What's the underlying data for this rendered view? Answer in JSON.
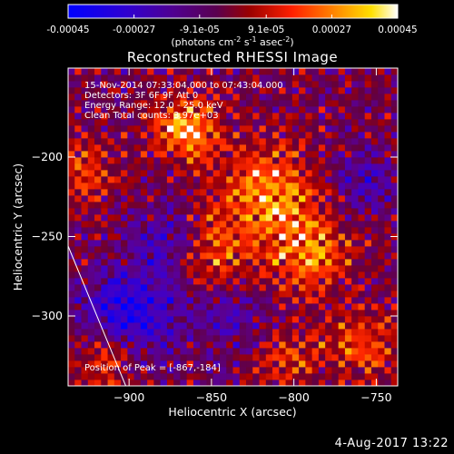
{
  "colorbar": {
    "ticks": [
      "-0.00045",
      "-0.00027",
      "-9.1e-05",
      "9.1e-05",
      "0.00027",
      "0.00045"
    ],
    "tick_values": [
      -0.00045,
      -0.00027,
      -9.1e-05,
      9.1e-05,
      0.00027,
      0.00045
    ],
    "units_text": "(photons cm",
    "units_sup1": "-2",
    "units_mid": " s",
    "units_sup2": "-1",
    "units_end": " asec",
    "units_sup3": "-2",
    "units_close": ")",
    "colormap": [
      "#0000ff",
      "#4a00a0",
      "#500078",
      "#8a0000",
      "#ff2000",
      "#ff8000",
      "#ffd000",
      "#ffffff"
    ]
  },
  "info": {
    "line1": "15-Nov-2014 07:33:04.000 to 07:43:04.000",
    "line2": "Detectors: 3F 6F 9F  Att 0",
    "line3": "Energy Range: 12.0 - 25.0 keV",
    "line4": "Clean    Total counts: 3.97e+03",
    "peak": "Position of Peak = [-867,-184]"
  },
  "footer": {
    "date": "4-Aug-2017 13:22"
  },
  "chart_data": {
    "type": "heatmap",
    "title": "Reconstructed RHESSI Image",
    "xlabel": "Heliocentric X (arcsec)",
    "ylabel": "Heliocentric Y (arcsec)",
    "xlim": [
      -937,
      -737
    ],
    "ylim": [
      -344,
      -144
    ],
    "xticks": [
      -900,
      -850,
      -800,
      -750
    ],
    "yticks": [
      -200,
      -250,
      -300
    ],
    "xtick_labels": [
      "−900",
      "−850",
      "−800",
      "−750"
    ],
    "ytick_labels": [
      "−200",
      "−250",
      "−300"
    ],
    "peak_position": [
      -867,
      -184
    ],
    "hot_regions": [
      {
        "x": -867,
        "y": -184,
        "sigma": 14,
        "level": 1.0
      },
      {
        "x": -818,
        "y": -225,
        "sigma": 22,
        "level": 0.85
      },
      {
        "x": -793,
        "y": -262,
        "sigma": 18,
        "level": 0.75
      },
      {
        "x": -850,
        "y": -265,
        "sigma": 16,
        "level": 0.6
      },
      {
        "x": -930,
        "y": -210,
        "sigma": 14,
        "level": 0.55
      },
      {
        "x": -915,
        "y": -330,
        "sigma": 14,
        "level": 0.6
      },
      {
        "x": -760,
        "y": -320,
        "sigma": 16,
        "level": 0.55
      },
      {
        "x": -805,
        "y": -330,
        "sigma": 14,
        "level": 0.5
      }
    ],
    "cold_regions": [
      {
        "x": -900,
        "y": -300,
        "sigma": 20,
        "level": -0.9
      },
      {
        "x": -880,
        "y": -255,
        "sigma": 14,
        "level": -0.5
      },
      {
        "x": -840,
        "y": -300,
        "sigma": 14,
        "level": -0.5
      },
      {
        "x": -760,
        "y": -220,
        "sigma": 14,
        "level": -0.5
      }
    ],
    "limb_line": {
      "from": [
        -937,
        -256
      ],
      "to": [
        -902,
        -344
      ]
    }
  }
}
